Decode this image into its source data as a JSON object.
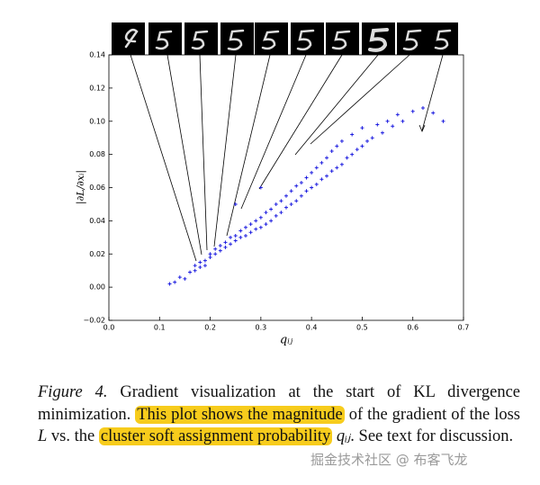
{
  "chart_data": {
    "type": "scatter",
    "color": "#1f1fe0",
    "x_label": "qᵢⱼ",
    "y_label": "|∂L/∂xᵢ|",
    "xlim": [
      0,
      0.7
    ],
    "ylim": [
      -0.02,
      0.14
    ],
    "xticks": [
      {
        "value": 0,
        "label": "0.0"
      },
      0.1,
      0.2,
      0.3,
      0.4,
      0.5,
      0.6,
      0.7
    ],
    "yticks": [
      {
        "value": -0.02,
        "label": "−0.02"
      },
      {
        "value": 0,
        "label": "0.00"
      },
      0.02,
      0.04,
      0.06,
      0.08,
      {
        "value": 0.1,
        "label": "0.10"
      },
      0.12,
      0.14
    ],
    "x": [
      0.12,
      0.13,
      0.14,
      0.15,
      0.16,
      0.17,
      0.17,
      0.18,
      0.18,
      0.19,
      0.19,
      0.2,
      0.2,
      0.21,
      0.21,
      0.22,
      0.22,
      0.23,
      0.23,
      0.24,
      0.24,
      0.25,
      0.25,
      0.26,
      0.26,
      0.27,
      0.27,
      0.28,
      0.28,
      0.29,
      0.29,
      0.3,
      0.3,
      0.31,
      0.31,
      0.32,
      0.32,
      0.33,
      0.33,
      0.34,
      0.34,
      0.35,
      0.35,
      0.36,
      0.36,
      0.37,
      0.37,
      0.38,
      0.38,
      0.39,
      0.39,
      0.4,
      0.4,
      0.41,
      0.41,
      0.42,
      0.42,
      0.43,
      0.43,
      0.44,
      0.44,
      0.45,
      0.45,
      0.46,
      0.46,
      0.47,
      0.48,
      0.48,
      0.49,
      0.5,
      0.5,
      0.51,
      0.52,
      0.53,
      0.54,
      0.55,
      0.56,
      0.57,
      0.58,
      0.6,
      0.62,
      0.64,
      0.66,
      0.25,
      0.3
    ],
    "values": [
      0.002,
      0.003,
      0.006,
      0.005,
      0.009,
      0.01,
      0.013,
      0.012,
      0.015,
      0.016,
      0.013,
      0.018,
      0.02,
      0.02,
      0.023,
      0.022,
      0.025,
      0.024,
      0.027,
      0.026,
      0.03,
      0.028,
      0.031,
      0.03,
      0.034,
      0.031,
      0.036,
      0.033,
      0.038,
      0.035,
      0.04,
      0.036,
      0.042,
      0.038,
      0.045,
      0.04,
      0.047,
      0.043,
      0.05,
      0.045,
      0.052,
      0.048,
      0.055,
      0.05,
      0.058,
      0.052,
      0.061,
      0.055,
      0.063,
      0.058,
      0.066,
      0.06,
      0.069,
      0.062,
      0.072,
      0.065,
      0.075,
      0.067,
      0.078,
      0.07,
      0.082,
      0.072,
      0.085,
      0.074,
      0.088,
      0.078,
      0.08,
      0.092,
      0.083,
      0.085,
      0.096,
      0.088,
      0.09,
      0.098,
      0.093,
      0.1,
      0.097,
      0.104,
      0.1,
      0.106,
      0.108,
      0.105,
      0.1,
      0.05,
      0.06
    ]
  },
  "caption": {
    "label": "Figure 4.",
    "text1": " Gradient visualization at the start of KL divergence minimization. ",
    "highlight1": "This plot shows the magnitude",
    "text2": " of the gradient of the loss ",
    "math1": "L",
    "text3": " vs. the ",
    "highlight2": "cluster soft assignment probability",
    "math2": "qᵢⱼ",
    "text4": ". See text for discussion."
  },
  "watermark": "掘金技术社区 @ 布客飞龙"
}
